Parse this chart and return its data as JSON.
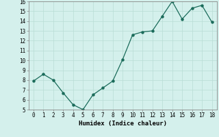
{
  "x": [
    0,
    1,
    2,
    3,
    4,
    5,
    6,
    7,
    8,
    9,
    10,
    11,
    12,
    13,
    14,
    15,
    16,
    17,
    18
  ],
  "y": [
    7.9,
    8.6,
    8.0,
    6.7,
    5.5,
    5.0,
    6.5,
    7.2,
    7.9,
    10.1,
    12.6,
    12.9,
    13.0,
    14.5,
    16.0,
    14.2,
    15.3,
    15.6,
    13.9
  ],
  "xlabel": "Humidex (Indice chaleur)",
  "ylim": [
    5,
    16
  ],
  "xlim": [
    -0.5,
    18.5
  ],
  "yticks": [
    5,
    6,
    7,
    8,
    9,
    10,
    11,
    12,
    13,
    14,
    15,
    16
  ],
  "xticks": [
    0,
    1,
    2,
    3,
    4,
    5,
    6,
    7,
    8,
    9,
    10,
    11,
    12,
    13,
    14,
    15,
    16,
    17,
    18
  ],
  "line_color": "#1a6b5a",
  "marker_color": "#1a6b5a",
  "bg_color": "#d4f0ec",
  "grid_color": "#c8e8e0",
  "border_color": "#888888"
}
